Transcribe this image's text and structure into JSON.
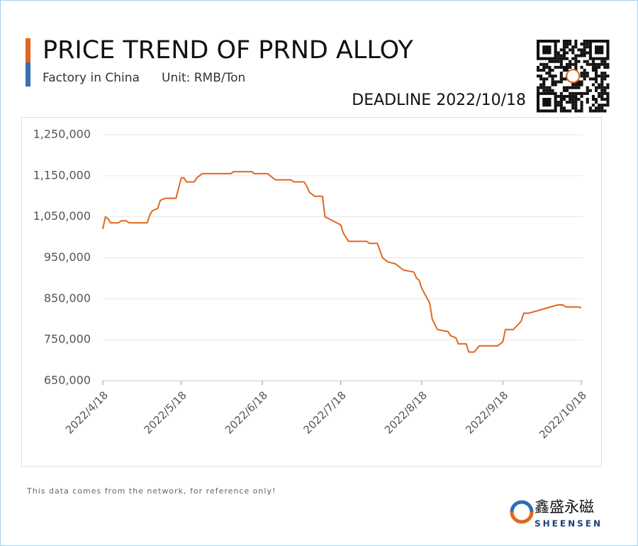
{
  "header": {
    "title": "PRICE TREND OF PRND ALLOY",
    "subtitle": "Factory in China",
    "unit": "Unit: RMB/Ton",
    "deadline": "DEADLINE 2022/10/18"
  },
  "chart_data": {
    "type": "line",
    "color": "#e0671f",
    "grid": true,
    "x": [
      "2022/4/18",
      "2022/4/19",
      "2022/4/20",
      "2022/4/21",
      "2022/4/24",
      "2022/4/25",
      "2022/4/27",
      "2022/4/28",
      "2022/5/5",
      "2022/5/6",
      "2022/5/7",
      "2022/5/9",
      "2022/5/10",
      "2022/5/12",
      "2022/5/16",
      "2022/5/18",
      "2022/5/19",
      "2022/5/20",
      "2022/5/23",
      "2022/5/24",
      "2022/5/26",
      "2022/6/6",
      "2022/6/7",
      "2022/6/14",
      "2022/6/15",
      "2022/6/20",
      "2022/6/23",
      "2022/6/29",
      "2022/6/30",
      "2022/7/4",
      "2022/7/5",
      "2022/7/6",
      "2022/7/8",
      "2022/7/11",
      "2022/7/12",
      "2022/7/15",
      "2022/7/18",
      "2022/7/19",
      "2022/7/21",
      "2022/7/28",
      "2022/7/29",
      "2022/8/1",
      "2022/8/3",
      "2022/8/5",
      "2022/8/8",
      "2022/8/9",
      "2022/8/11",
      "2022/8/15",
      "2022/8/16",
      "2022/8/17",
      "2022/8/18",
      "2022/8/21",
      "2022/8/22",
      "2022/8/24",
      "2022/8/28",
      "2022/8/29",
      "2022/8/31",
      "2022/9/1",
      "2022/9/4",
      "2022/9/5",
      "2022/9/7",
      "2022/9/9",
      "2022/9/16",
      "2022/9/18",
      "2022/9/19",
      "2022/9/22",
      "2022/9/25",
      "2022/9/26",
      "2022/9/28",
      "2022/10/9",
      "2022/10/11",
      "2022/10/12",
      "2022/10/15",
      "2022/10/17",
      "2022/10/18"
    ],
    "values": [
      1020000,
      1050000,
      1045000,
      1035000,
      1035000,
      1040000,
      1040000,
      1035000,
      1035000,
      1055000,
      1065000,
      1070000,
      1090000,
      1095000,
      1095000,
      1145000,
      1145000,
      1135000,
      1135000,
      1145000,
      1155000,
      1155000,
      1160000,
      1160000,
      1155000,
      1155000,
      1140000,
      1140000,
      1135000,
      1135000,
      1125000,
      1110000,
      1100000,
      1100000,
      1050000,
      1040000,
      1030000,
      1010000,
      990000,
      990000,
      985000,
      985000,
      950000,
      940000,
      935000,
      930000,
      920000,
      915000,
      900000,
      895000,
      875000,
      840000,
      800000,
      775000,
      770000,
      760000,
      755000,
      740000,
      740000,
      720000,
      720000,
      735000,
      735000,
      745000,
      775000,
      775000,
      795000,
      815000,
      815000,
      835000,
      835000,
      830000,
      830000,
      830000,
      828000
    ],
    "xlim": [
      "2022/4/18",
      "2022/10/18"
    ],
    "xticks": [
      "2022/4/18",
      "2022/5/18",
      "2022/6/18",
      "2022/7/18",
      "2022/8/18",
      "2022/9/18",
      "2022/10/18"
    ],
    "ylim": [
      650000,
      1250000
    ],
    "yticks": [
      {
        "value": 650000,
        "label": "650,000"
      },
      {
        "value": 750000,
        "label": "750,000"
      },
      {
        "value": 850000,
        "label": "850,000"
      },
      {
        "value": 950000,
        "label": "950,000"
      },
      {
        "value": 1050000,
        "label": "1,050,000"
      },
      {
        "value": 1150000,
        "label": "1,150,000"
      },
      {
        "value": 1250000,
        "label": "1,250,000"
      }
    ]
  },
  "footer": {
    "note": "This data comes from the network, for reference only!",
    "brand": "鑫盛永磁",
    "brand_en": "SHEENSEN"
  }
}
